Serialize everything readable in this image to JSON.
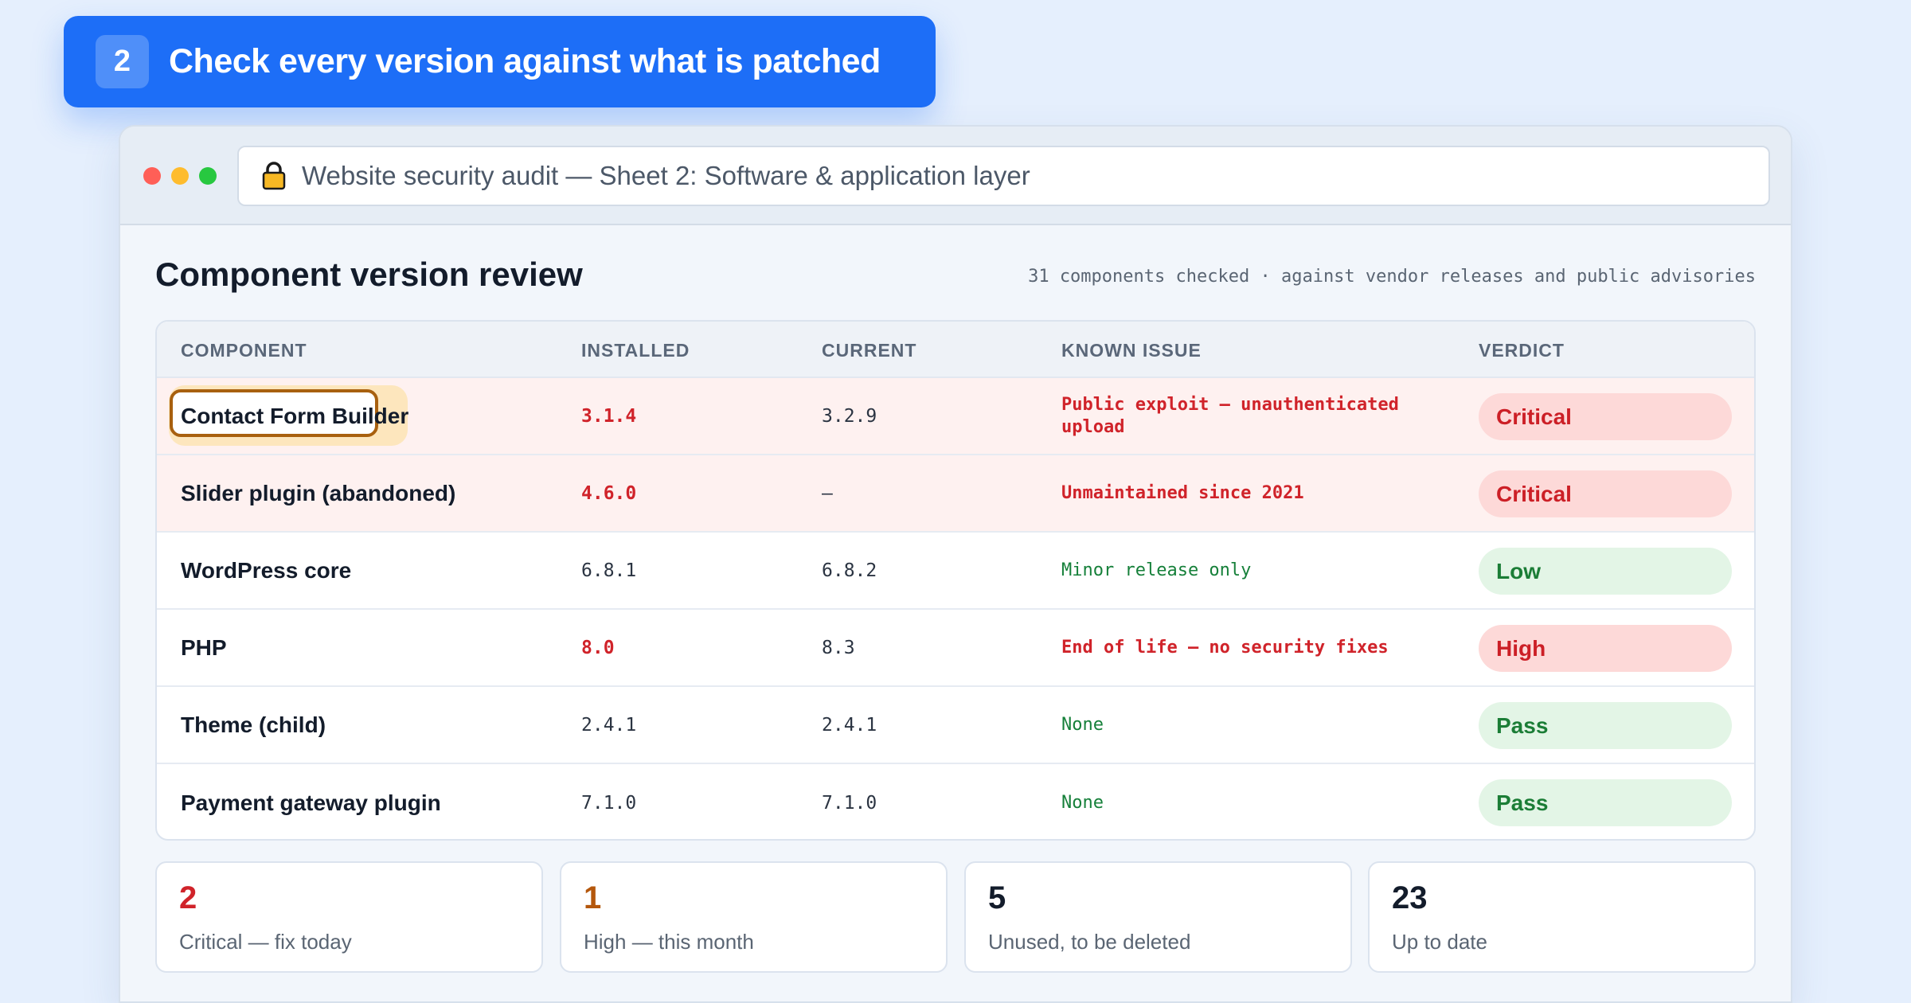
{
  "banner": {
    "step": "2",
    "title": "Check every version against what is patched"
  },
  "window": {
    "url": "Website security audit — Sheet 2: Software & application layer",
    "icon": "lock-icon"
  },
  "section": {
    "title": "Component version review",
    "meta": "31 components checked · against vendor releases and public advisories"
  },
  "table": {
    "headers": [
      "COMPONENT",
      "INSTALLED",
      "CURRENT",
      "KNOWN ISSUE",
      "VERDICT"
    ],
    "rows": [
      {
        "component": "Contact Form Builder",
        "installed": "3.1.4",
        "current": "3.2.9",
        "issue": "Public exploit — unauthenticated upload",
        "verdict": "Critical"
      },
      {
        "component": "Slider plugin (abandoned)",
        "installed": "4.6.0",
        "current": "—",
        "issue": "Unmaintained since 2021",
        "verdict": "Critical"
      },
      {
        "component": "WordPress core",
        "installed": "6.8.1",
        "current": "6.8.2",
        "issue": "Minor release only",
        "verdict": "Low"
      },
      {
        "component": "PHP",
        "installed": "8.0",
        "current": "8.3",
        "issue": "End of life — no security fixes",
        "verdict": "High"
      },
      {
        "component": "Theme (child)",
        "installed": "2.4.1",
        "current": "2.4.1",
        "issue": "None",
        "verdict": "Pass"
      },
      {
        "component": "Payment gateway plugin",
        "installed": "7.1.0",
        "current": "7.1.0",
        "issue": "None",
        "verdict": "Pass"
      }
    ]
  },
  "stats": [
    {
      "value": "2",
      "label": "Critical — fix today",
      "color": "#d0232a"
    },
    {
      "value": "1",
      "label": "High — this month",
      "color": "#b4570c"
    },
    {
      "value": "5",
      "label": "Unused, to be deleted",
      "color": "#131c2b"
    },
    {
      "value": "23",
      "label": "Up to date",
      "color": "#131c2b"
    }
  ],
  "colors": {
    "accent": "#1d6ef7",
    "critical": "#d0232a",
    "ok": "#1b7d36"
  }
}
